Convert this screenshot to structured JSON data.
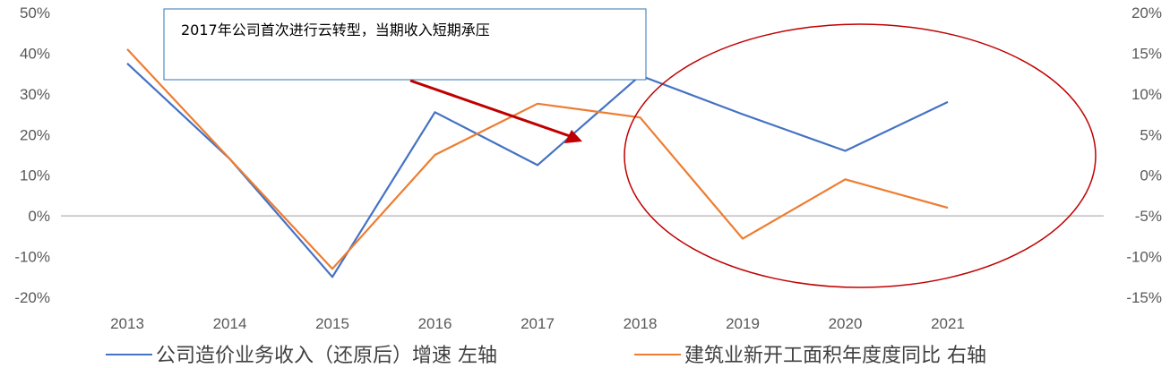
{
  "chart_data": {
    "type": "line",
    "categories": [
      "2013",
      "2014",
      "2015",
      "2016",
      "2017",
      "2018",
      "2019",
      "2020",
      "2021"
    ],
    "series": [
      {
        "name": "公司造价业务收入（还原后）增速  左轴",
        "axis": "left",
        "color": "#4472C4",
        "values": [
          37.5,
          14.0,
          -15.0,
          25.5,
          12.5,
          34.5,
          25.0,
          16.0,
          28.0
        ]
      },
      {
        "name": "建筑业新开工面积年度度同比  右轴",
        "axis": "right",
        "color": "#ED7D31",
        "values": [
          15.5,
          2.0,
          -11.5,
          2.5,
          8.8,
          7.1,
          -7.8,
          -0.5,
          -4.0
        ]
      }
    ],
    "left_axis": {
      "ylim": [
        -20,
        50
      ],
      "ticks": [
        -20,
        -10,
        0,
        10,
        20,
        30,
        40,
        50
      ],
      "tick_labels": [
        "-20%",
        "-10%",
        "0%",
        "10%",
        "20%",
        "30%",
        "40%",
        "50%"
      ]
    },
    "right_axis": {
      "ylim": [
        -15,
        20
      ],
      "ticks": [
        -15,
        -10,
        -5,
        0,
        5,
        10,
        15,
        20
      ],
      "tick_labels": [
        "-15%",
        "-10%",
        "-5%",
        "0%",
        "5%",
        "10%",
        "15%",
        "20%"
      ]
    },
    "annotation": "2017年公司首次进行云转型，当期收入短期承压",
    "highlight_color": "#C00000",
    "legend_position": "bottom",
    "grid": false
  }
}
